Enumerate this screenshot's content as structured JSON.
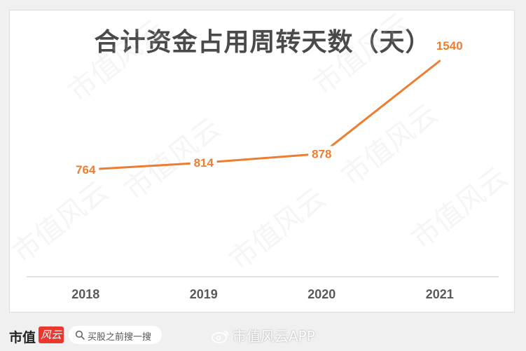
{
  "chart_data": {
    "type": "line",
    "title": "合计资金占用周转天数（天）",
    "categories": [
      "2018",
      "2019",
      "2020",
      "2021"
    ],
    "series": [
      {
        "values": [
          764,
          814,
          878,
          1540
        ]
      }
    ],
    "data_labels": [
      "764",
      "814",
      "878",
      "1540"
    ],
    "ylim": [
      0,
      1600
    ],
    "grid": false,
    "legend": "none",
    "line_color": "#ed7d31",
    "axis_color": "#d9d9d9"
  },
  "watermark": "市值风云",
  "footer": {
    "brand": "市值",
    "brand_logo": "风云",
    "search_text": "买股之前搜一搜",
    "weibo_text": "市值风云APP"
  }
}
